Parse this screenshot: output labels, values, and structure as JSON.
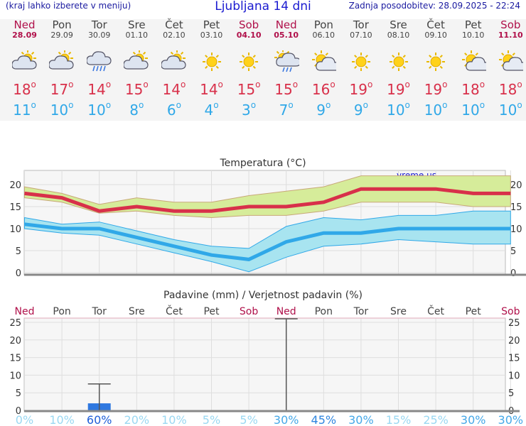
{
  "header": {
    "menu_hint": "(kraj lahko izberete v meniju)",
    "title": "Ljubljana 14 dni",
    "updated": "Zadnja posodobitev: 28.09.2025 - 22:24"
  },
  "days": [
    {
      "name": "Ned",
      "date": "28.09",
      "weekend": true,
      "icon": "sun-cloud-icon",
      "tmax": "18",
      "tmin": "11",
      "precip": 0,
      "prob": "0%"
    },
    {
      "name": "Pon",
      "date": "29.09",
      "weekend": false,
      "icon": "sun-cloud-icon",
      "tmax": "17",
      "tmin": "10",
      "precip": 0,
      "prob": "10%"
    },
    {
      "name": "Tor",
      "date": "30.09",
      "weekend": false,
      "icon": "rain-cloud-icon",
      "tmax": "14",
      "tmin": "10",
      "precip": 2,
      "prob": "60%"
    },
    {
      "name": "Sre",
      "date": "01.10",
      "weekend": false,
      "icon": "sun-cloud-icon",
      "tmax": "15",
      "tmin": "8",
      "precip": 0,
      "prob": "20%"
    },
    {
      "name": "Čet",
      "date": "02.10",
      "weekend": false,
      "icon": "sun-cloud-icon",
      "tmax": "14",
      "tmin": "6",
      "precip": 0,
      "prob": "10%"
    },
    {
      "name": "Pet",
      "date": "03.10",
      "weekend": false,
      "icon": "sun-icon",
      "tmax": "14",
      "tmin": "4",
      "precip": 0,
      "prob": "5%"
    },
    {
      "name": "Sob",
      "date": "04.10",
      "weekend": true,
      "icon": "sun-icon",
      "tmax": "15",
      "tmin": "3",
      "precip": 0,
      "prob": "5%"
    },
    {
      "name": "Ned",
      "date": "05.10",
      "weekend": true,
      "icon": "sun-rain-icon",
      "tmax": "15",
      "tmin": "7",
      "precip": 0,
      "prob": "30%"
    },
    {
      "name": "Pon",
      "date": "06.10",
      "weekend": false,
      "icon": "sun-small-cloud-icon",
      "tmax": "16",
      "tmin": "9",
      "precip": 0,
      "prob": "45%"
    },
    {
      "name": "Tor",
      "date": "07.10",
      "weekend": false,
      "icon": "sun-icon",
      "tmax": "19",
      "tmin": "9",
      "precip": 0,
      "prob": "30%"
    },
    {
      "name": "Sre",
      "date": "08.10",
      "weekend": false,
      "icon": "sun-icon",
      "tmax": "19",
      "tmin": "10",
      "precip": 0,
      "prob": "15%"
    },
    {
      "name": "Čet",
      "date": "09.10",
      "weekend": false,
      "icon": "sun-icon",
      "tmax": "19",
      "tmin": "10",
      "precip": 0,
      "prob": "25%"
    },
    {
      "name": "Pet",
      "date": "10.10",
      "weekend": false,
      "icon": "sun-small-cloud-icon",
      "tmax": "18",
      "tmin": "10",
      "precip": 0,
      "prob": "30%"
    },
    {
      "name": "Sob",
      "date": "11.10",
      "weekend": true,
      "icon": "sun-small-cloud-icon",
      "tmax": "18",
      "tmin": "10",
      "precip": 0,
      "prob": "30%"
    }
  ],
  "chart_data": [
    {
      "type": "line",
      "title": "Temperatura (°C)",
      "watermark": "vreme.us",
      "x": [
        "28.09",
        "29.09",
        "30.09",
        "01.10",
        "02.10",
        "03.10",
        "04.10",
        "05.10",
        "06.10",
        "07.10",
        "08.10",
        "09.10",
        "10.10",
        "11.10"
      ],
      "ylim": [
        0,
        21
      ],
      "yticks": [
        0,
        5,
        10,
        15,
        20
      ],
      "series": [
        {
          "name": "max",
          "color": "#d8304a",
          "values": [
            18,
            17,
            14,
            15,
            14,
            14,
            15,
            15,
            16,
            19,
            19,
            19,
            18,
            18
          ]
        },
        {
          "name": "max_low",
          "color": "#d0b080",
          "values": [
            17,
            16,
            13.5,
            14,
            13,
            12.5,
            13,
            13,
            14,
            16,
            16,
            16,
            15,
            15
          ]
        },
        {
          "name": "max_high",
          "color": "#d0b080",
          "values": [
            19.5,
            18,
            15.5,
            17,
            16,
            16,
            17.5,
            18.5,
            19.5,
            22,
            22,
            22,
            22,
            22
          ]
        },
        {
          "name": "min",
          "color": "#30a8e8",
          "values": [
            11,
            10,
            10,
            8,
            6,
            4,
            3,
            7,
            9,
            9,
            10,
            10,
            10,
            10
          ]
        },
        {
          "name": "min_low",
          "color": "#30a8e8",
          "values": [
            10,
            9,
            8.5,
            6.5,
            4.5,
            2.5,
            0.2,
            3.5,
            6,
            6.5,
            7.5,
            7,
            6.5,
            6.5
          ]
        },
        {
          "name": "min_high",
          "color": "#30a8e8",
          "values": [
            12.5,
            11,
            11.5,
            9.5,
            7.5,
            6,
            5.5,
            10.5,
            12.5,
            12,
            13,
            13,
            14,
            14
          ]
        }
      ]
    },
    {
      "type": "bar",
      "title": "Padavine (mm) / Verjetnost padavin (%)",
      "categories": [
        "Ned",
        "Pon",
        "Tor",
        "Sre",
        "Čet",
        "Pet",
        "Sob",
        "Ned",
        "Pon",
        "Tor",
        "Sre",
        "Čet",
        "Pet",
        "Sob"
      ],
      "ylim": [
        0,
        26
      ],
      "yticks": [
        0,
        5,
        10,
        15,
        20,
        25
      ],
      "values": [
        0,
        0,
        2,
        0,
        0,
        0,
        0,
        0,
        0,
        0,
        0,
        0,
        0,
        0
      ],
      "whisker_max": [
        0,
        0,
        7.5,
        0,
        0,
        0,
        0,
        26,
        0,
        0,
        0,
        0,
        0,
        0
      ],
      "probability": [
        "0%",
        "10%",
        "60%",
        "20%",
        "10%",
        "5%",
        "5%",
        "30%",
        "45%",
        "30%",
        "15%",
        "25%",
        "30%",
        "30%"
      ],
      "colors": {
        "bar": "#2f78e0",
        "whisker": "#555555"
      }
    }
  ]
}
